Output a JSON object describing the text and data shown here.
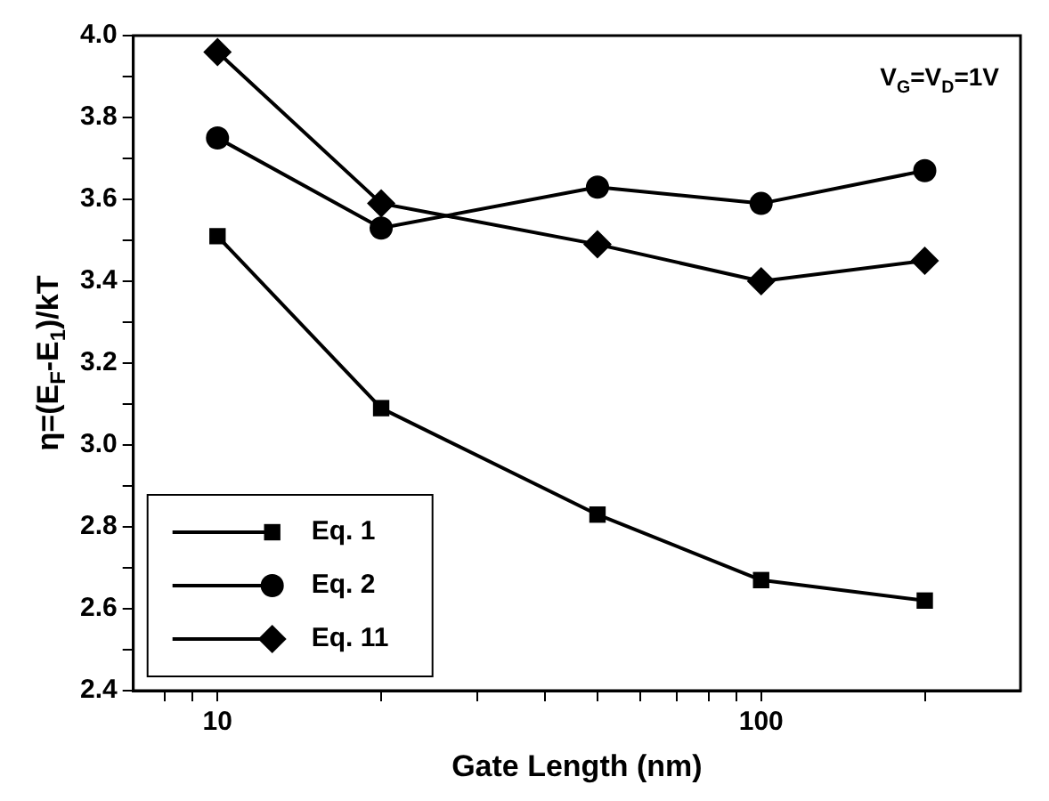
{
  "chart_data": {
    "type": "line",
    "xlabel": "Gate Length (nm)",
    "ylabel": "η=(E$_{F}$-E$_{1}$)/kT",
    "annotations": [
      "V$_{G}$=V$_{D}$=1V"
    ],
    "x": [
      10,
      20,
      50,
      100,
      200
    ],
    "log": "x",
    "xlim": [
      7,
      300
    ],
    "ylim": [
      2.4,
      4.0
    ],
    "xticks": [
      {
        "value": 8,
        "label": null
      },
      {
        "value": 9,
        "label": null
      },
      10,
      {
        "value": 20,
        "label": null
      },
      {
        "value": 30,
        "label": null
      },
      {
        "value": 40,
        "label": null
      },
      {
        "value": 50,
        "label": null
      },
      {
        "value": 60,
        "label": null
      },
      {
        "value": 70,
        "label": null
      },
      {
        "value": 80,
        "label": null
      },
      {
        "value": 90,
        "label": null
      },
      100,
      {
        "value": 200,
        "label": null
      }
    ],
    "yticks": [
      {
        "value": 2.4,
        "label": "2.4"
      },
      {
        "value": 2.5,
        "label": null
      },
      {
        "value": 2.6,
        "label": "2.6"
      },
      {
        "value": 2.7,
        "label": null
      },
      {
        "value": 2.8,
        "label": "2.8"
      },
      {
        "value": 2.9,
        "label": null
      },
      {
        "value": 3.0,
        "label": "3.0"
      },
      {
        "value": 3.1,
        "label": null
      },
      {
        "value": 3.2,
        "label": "3.2"
      },
      {
        "value": 3.3,
        "label": null
      },
      {
        "value": 3.4,
        "label": "3.4"
      },
      {
        "value": 3.5,
        "label": null
      },
      {
        "value": 3.6,
        "label": "3.6"
      },
      {
        "value": 3.7,
        "label": null
      },
      {
        "value": 3.8,
        "label": "3.8"
      },
      {
        "value": 3.9,
        "label": null
      },
      {
        "value": 4.0,
        "label": "4.0"
      }
    ],
    "grid": false,
    "legend": "bottom left",
    "line_style": "solid",
    "series": [
      {
        "name": "Eq. 1",
        "color": "#000000",
        "marker": "square",
        "values": [
          3.51,
          3.09,
          2.83,
          2.67,
          2.62
        ]
      },
      {
        "name": "Eq. 2",
        "color": "#000000",
        "marker": "circle",
        "values": [
          3.75,
          3.53,
          3.63,
          3.59,
          3.67
        ]
      },
      {
        "name": "Eq. 11",
        "color": "#000000",
        "marker": "diamond",
        "values": [
          3.96,
          3.59,
          3.49,
          3.4,
          3.45
        ]
      }
    ]
  }
}
